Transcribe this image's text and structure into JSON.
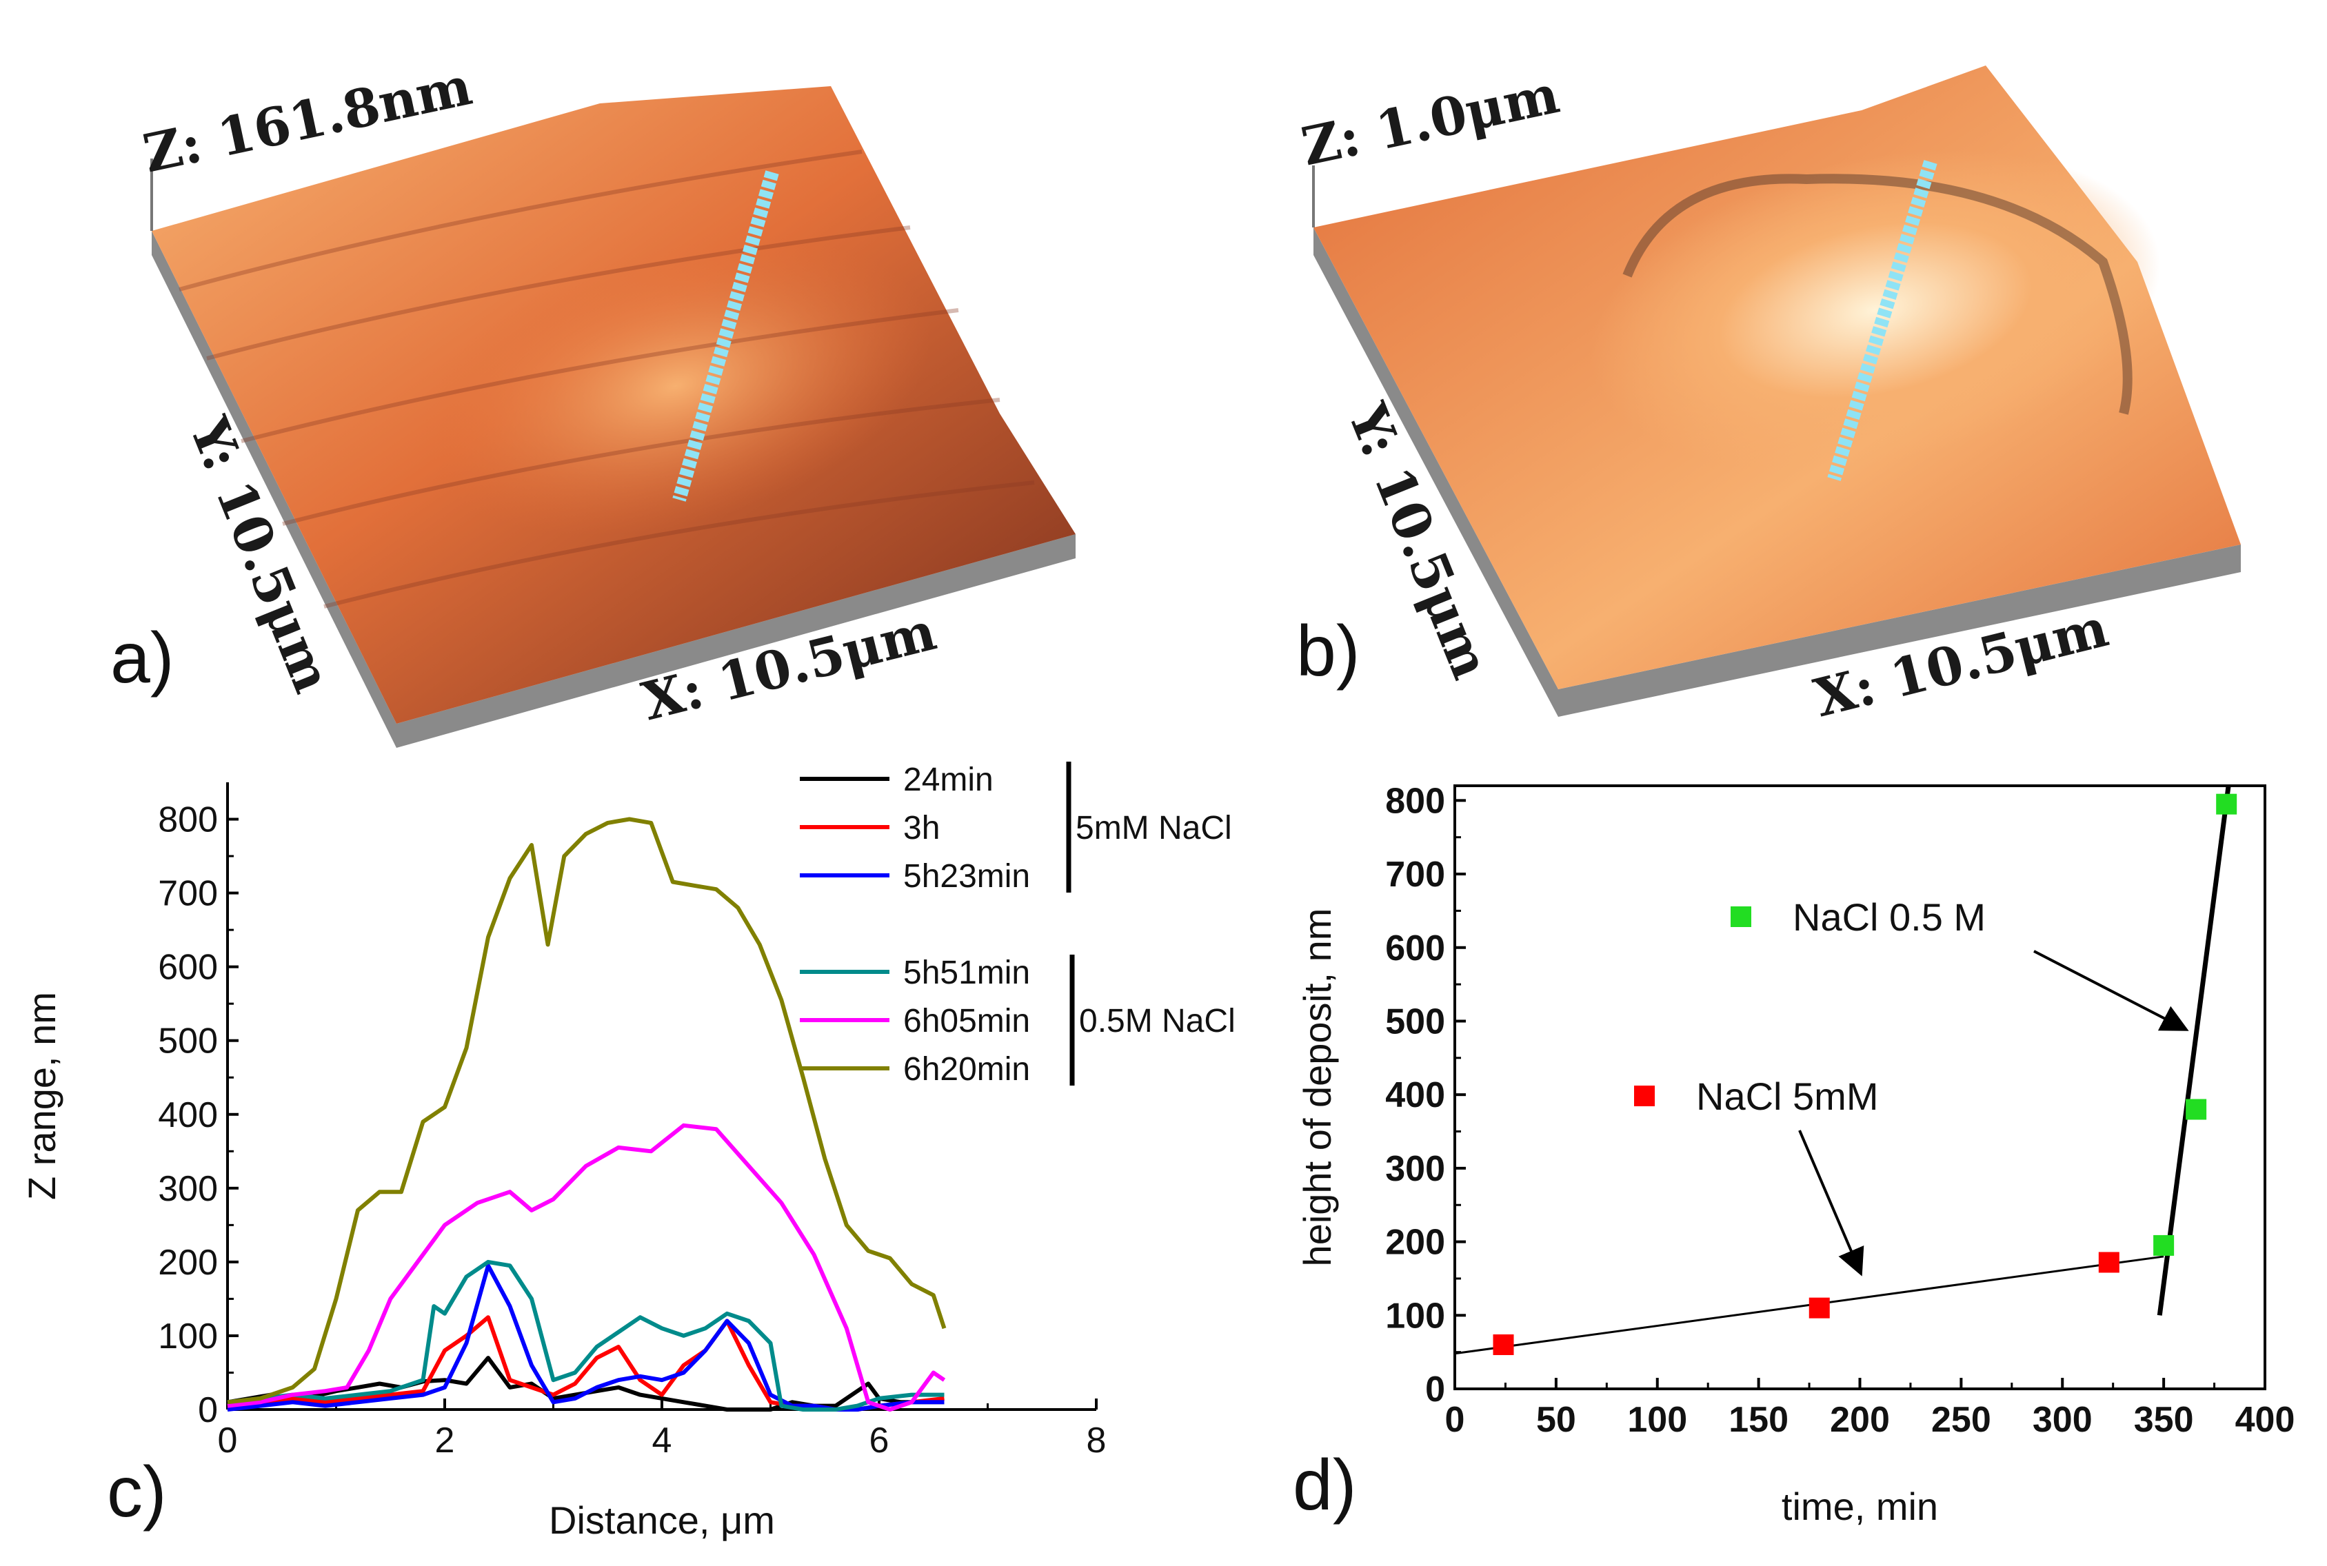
{
  "panels": {
    "a": {
      "letter": "a)",
      "z_label": "Z: 161.8nm",
      "y_label": "Y: 10.5μm",
      "x_label": "X: 10.5μm"
    },
    "b": {
      "letter": "b)",
      "z_label": "Z: 1.0μm",
      "y_label": "Y: 10.5μm",
      "x_label": "X: 10.5μm"
    },
    "c": {
      "letter": "c)"
    },
    "d": {
      "letter": "d)"
    }
  },
  "colors": {
    "afm_surface": "#e2703a",
    "afm_dark": "#7a2f1c",
    "afm_light": "#f7b070",
    "afm_highlight": "#fff3d8",
    "scan_line": "#8fe3f5",
    "base_gray": "#8a8a8a"
  },
  "chart_data": [
    {
      "id": "c",
      "type": "line",
      "xlabel": "Distance, μm",
      "ylabel": "Z range, nm",
      "xlim": [
        0,
        8
      ],
      "ylim": [
        0,
        850
      ],
      "xticks": [
        0,
        2,
        4,
        6,
        8
      ],
      "yticks": [
        0,
        100,
        200,
        300,
        400,
        500,
        600,
        700,
        800
      ],
      "legend_groups": [
        {
          "label": "5mM NaCl",
          "members": [
            "24min",
            "3h",
            "5h23min"
          ]
        },
        {
          "label": "0.5M NaCl",
          "members": [
            "5h51min",
            "6h05min",
            "6h20min"
          ]
        }
      ],
      "series": [
        {
          "name": "24min",
          "color": "#000000",
          "x": [
            0,
            0.2,
            0.4,
            0.6,
            0.8,
            1.0,
            1.2,
            1.4,
            1.6,
            1.8,
            2.0,
            2.2,
            2.4,
            2.6,
            2.8,
            3.0,
            3.2,
            3.4,
            3.6,
            3.8,
            4.0,
            4.2,
            4.4,
            4.6,
            4.8,
            5.0,
            5.2,
            5.4,
            5.6,
            5.8,
            5.9,
            6.0,
            6.2,
            6.4,
            6.6
          ],
          "y": [
            10,
            15,
            20,
            12,
            18,
            25,
            30,
            35,
            30,
            38,
            40,
            35,
            70,
            30,
            35,
            15,
            20,
            25,
            30,
            20,
            15,
            10,
            5,
            0,
            0,
            0,
            10,
            5,
            5,
            25,
            35,
            15,
            10,
            10,
            10
          ]
        },
        {
          "name": "3h",
          "color": "#ff0000",
          "x": [
            0,
            0.3,
            0.6,
            0.9,
            1.2,
            1.5,
            1.8,
            2.0,
            2.2,
            2.4,
            2.6,
            2.8,
            3.0,
            3.2,
            3.4,
            3.6,
            3.8,
            4.0,
            4.2,
            4.4,
            4.6,
            4.8,
            5.0,
            5.2,
            5.4,
            5.6,
            5.8,
            6.0,
            6.3,
            6.6
          ],
          "y": [
            5,
            10,
            15,
            10,
            15,
            20,
            25,
            80,
            100,
            125,
            40,
            30,
            20,
            35,
            70,
            85,
            40,
            20,
            60,
            80,
            120,
            60,
            10,
            5,
            5,
            0,
            0,
            5,
            10,
            15
          ]
        },
        {
          "name": "5h23min",
          "color": "#0000ff",
          "x": [
            0,
            0.3,
            0.6,
            0.9,
            1.2,
            1.5,
            1.8,
            2.0,
            2.2,
            2.4,
            2.6,
            2.8,
            3.0,
            3.2,
            3.4,
            3.6,
            3.8,
            4.0,
            4.2,
            4.4,
            4.6,
            4.8,
            5.0,
            5.2,
            5.4,
            5.6,
            5.8,
            6.0,
            6.3,
            6.6
          ],
          "y": [
            0,
            5,
            10,
            5,
            10,
            15,
            20,
            30,
            90,
            195,
            140,
            60,
            10,
            15,
            30,
            40,
            45,
            40,
            50,
            80,
            120,
            90,
            20,
            5,
            5,
            0,
            0,
            5,
            10,
            10
          ]
        },
        {
          "name": "5h51min",
          "color": "#008b8b",
          "x": [
            0,
            0.3,
            0.6,
            0.9,
            1.2,
            1.5,
            1.8,
            1.9,
            2.0,
            2.2,
            2.4,
            2.6,
            2.8,
            3.0,
            3.2,
            3.4,
            3.6,
            3.8,
            4.0,
            4.2,
            4.4,
            4.6,
            4.8,
            5.0,
            5.1,
            5.3,
            5.6,
            5.8,
            6.0,
            6.3,
            6.6
          ],
          "y": [
            10,
            15,
            20,
            15,
            20,
            25,
            40,
            140,
            130,
            180,
            200,
            195,
            150,
            40,
            50,
            85,
            105,
            125,
            110,
            100,
            110,
            130,
            120,
            90,
            5,
            0,
            0,
            5,
            15,
            20,
            20
          ]
        },
        {
          "name": "6h05min",
          "color": "#ff00ff",
          "x": [
            0,
            0.3,
            0.6,
            0.9,
            1.1,
            1.3,
            1.5,
            1.8,
            2.0,
            2.3,
            2.6,
            2.8,
            3.0,
            3.3,
            3.6,
            3.9,
            4.2,
            4.5,
            4.8,
            5.1,
            5.4,
            5.7,
            5.9,
            6.1,
            6.3,
            6.5,
            6.6
          ],
          "y": [
            5,
            10,
            20,
            25,
            30,
            80,
            150,
            210,
            250,
            280,
            295,
            270,
            285,
            330,
            355,
            350,
            385,
            380,
            330,
            280,
            210,
            110,
            10,
            0,
            10,
            50,
            40
          ]
        },
        {
          "name": "6h20min",
          "color": "#808000",
          "x": [
            0,
            0.3,
            0.6,
            0.8,
            1.0,
            1.2,
            1.4,
            1.6,
            1.8,
            2.0,
            2.2,
            2.4,
            2.6,
            2.8,
            2.95,
            3.1,
            3.3,
            3.5,
            3.7,
            3.9,
            4.1,
            4.3,
            4.5,
            4.7,
            4.9,
            5.1,
            5.3,
            5.5,
            5.7,
            5.9,
            6.1,
            6.3,
            6.5,
            6.6
          ],
          "y": [
            10,
            15,
            30,
            55,
            150,
            270,
            295,
            295,
            390,
            410,
            490,
            640,
            720,
            765,
            630,
            750,
            780,
            795,
            800,
            795,
            715,
            710,
            705,
            680,
            630,
            555,
            450,
            340,
            250,
            215,
            205,
            170,
            155,
            110
          ]
        }
      ]
    },
    {
      "id": "d",
      "type": "scatter",
      "xlabel": "time, min",
      "ylabel": "height of deposit, nm",
      "xlim": [
        0,
        400
      ],
      "ylim": [
        0,
        820
      ],
      "xticks": [
        0,
        50,
        100,
        150,
        200,
        250,
        300,
        350,
        400
      ],
      "yticks": [
        0,
        100,
        200,
        300,
        400,
        500,
        600,
        700,
        800
      ],
      "series": [
        {
          "name": "NaCl 5mM",
          "color": "#ff0000",
          "x": [
            24,
            180,
            323
          ],
          "y": [
            60,
            110,
            172
          ]
        },
        {
          "name": "NaCl 0.5 M",
          "color": "#22dd22",
          "x": [
            350,
            366,
            381
          ],
          "y": [
            195,
            380,
            795
          ]
        }
      ],
      "fit_lines": [
        {
          "name": "5mM fit",
          "x": [
            0,
            350
          ],
          "y": [
            48,
            180
          ]
        },
        {
          "name": "0.5M fit",
          "x": [
            348,
            382
          ],
          "y": [
            100,
            820
          ]
        }
      ],
      "annotations": [
        {
          "text": "NaCl 0.5 M",
          "marker_color": "#22dd22",
          "arrow_to": [
            360,
            490
          ]
        },
        {
          "text": "NaCl 5mM",
          "marker_color": "#ff0000",
          "arrow_to": [
            200,
            160
          ]
        }
      ]
    }
  ]
}
